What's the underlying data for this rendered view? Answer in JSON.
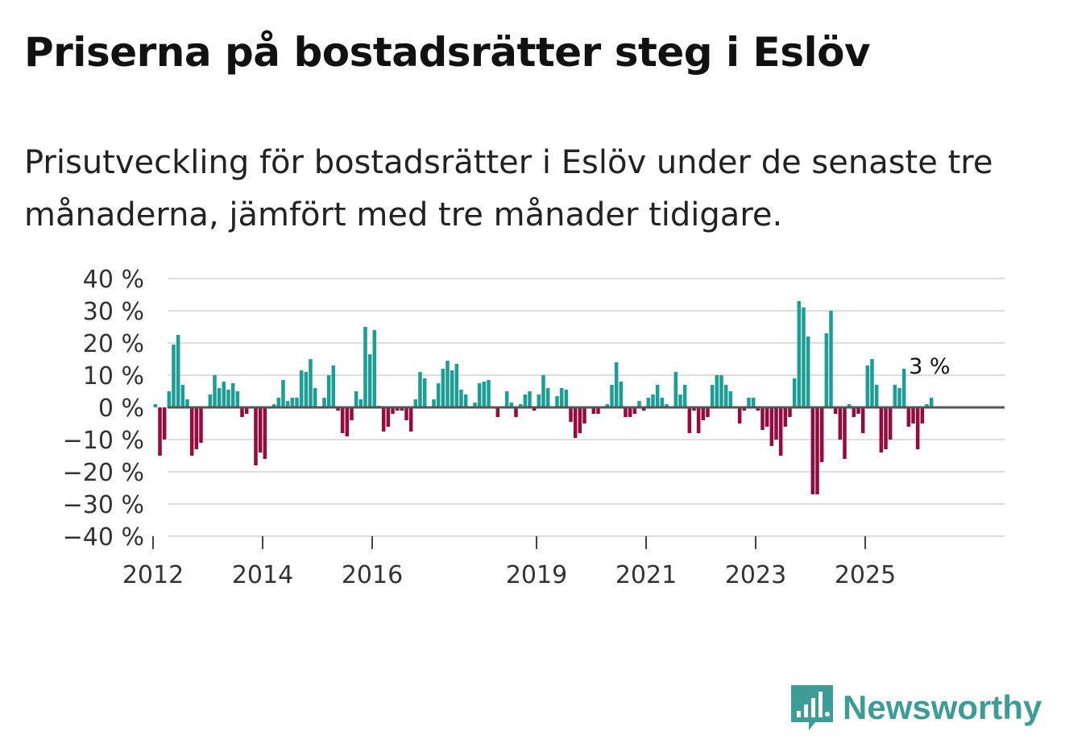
{
  "page": {
    "title": "Priserna på bostadsrätter steg i Eslöv",
    "subtitle": "Prisutveckling för bostadsrätter i Eslöv under de senaste tre månaderna, jämfört med tre månader tidigare."
  },
  "colors": {
    "positive": "#1a9e96",
    "negative": "#970a3c",
    "grid": "#dddddd",
    "zero_line": "#555555",
    "logo": "#3d9c95"
  },
  "logo": {
    "name": "Newsworthy",
    "icon": "bar-chart-speech-bubble-icon"
  },
  "chart_data": {
    "type": "bar",
    "title": "Priserna på bostadsrätter steg i Eslöv",
    "xlabel": "",
    "ylabel": "",
    "ylim": [
      -40,
      40
    ],
    "yticks": [
      40,
      30,
      20,
      10,
      0,
      -10,
      -20,
      -30,
      -40
    ],
    "ytick_labels": [
      "40 %",
      "30 %",
      "20 %",
      "10 %",
      "0 %",
      "−10 %",
      "−20 %",
      "−30 %",
      "−40 %"
    ],
    "start": "2011-01",
    "xticks": [
      "2012",
      "2014",
      "2016",
      "2019",
      "2021",
      "2023",
      "2025"
    ],
    "grid": true,
    "annotation": "3 %",
    "values": [
      null,
      null,
      null,
      null,
      null,
      null,
      null,
      null,
      null,
      null,
      null,
      null,
      1,
      -15,
      -10,
      5,
      19.5,
      22.5,
      7,
      2.5,
      -15,
      -13,
      -11,
      0,
      4,
      10,
      6,
      8,
      5.5,
      7.5,
      5,
      -3,
      -2,
      0,
      -18,
      -14,
      -16,
      0,
      1,
      3,
      8.5,
      2,
      3,
      3,
      11.5,
      11,
      15,
      6,
      0,
      3,
      10,
      13,
      -1,
      -8,
      -9,
      -4,
      5,
      2.5,
      25,
      16.5,
      24,
      0.5,
      -7.5,
      -6,
      -2,
      -1,
      -1,
      -4,
      -7.5,
      2.5,
      11,
      9,
      0,
      2.5,
      7.5,
      12,
      14.5,
      11.5,
      13.5,
      5.5,
      4,
      0,
      1.5,
      7.5,
      8,
      8.5,
      0,
      -3,
      0,
      5,
      1.5,
      -3,
      1,
      4,
      5,
      -1,
      4,
      10,
      6,
      0,
      3.5,
      6,
      5.5,
      -4.5,
      -9.5,
      -8,
      -5,
      0,
      -2,
      -2,
      0,
      1,
      7,
      14,
      8,
      -3,
      -3,
      -2,
      2,
      -1,
      3,
      4,
      7,
      3,
      1,
      0,
      11,
      4,
      7,
      -8,
      -1,
      -8,
      -4,
      -3,
      7,
      10,
      10,
      7,
      5,
      0,
      -5,
      -1,
      3,
      3,
      -1,
      -7,
      -6,
      -12,
      -10,
      -15,
      -6,
      -3,
      9,
      33,
      31,
      22,
      -27,
      -27,
      -17,
      23,
      30,
      -2,
      -10,
      -16,
      1,
      -3,
      -2,
      -8,
      13,
      15,
      7,
      -14,
      -13,
      -10,
      7,
      6,
      12,
      -6,
      -5,
      -13,
      -5,
      1,
      3
    ]
  }
}
